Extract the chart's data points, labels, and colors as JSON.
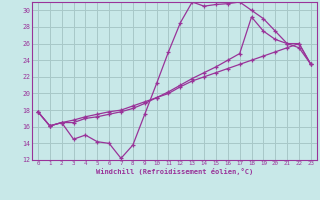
{
  "xlabel": "Windchill (Refroidissement éolien,°C)",
  "bg_color": "#c8e8e8",
  "grid_color": "#a8c8c8",
  "line_color": "#993399",
  "xlim": [
    -0.5,
    23.5
  ],
  "ylim": [
    12,
    31
  ],
  "xticks": [
    0,
    1,
    2,
    3,
    4,
    5,
    6,
    7,
    8,
    9,
    10,
    11,
    12,
    13,
    14,
    15,
    16,
    17,
    18,
    19,
    20,
    21,
    22,
    23
  ],
  "yticks": [
    12,
    14,
    16,
    18,
    20,
    22,
    24,
    26,
    28,
    30
  ],
  "series1_x": [
    0,
    1,
    2,
    3,
    4,
    5,
    6,
    7,
    8,
    9,
    10,
    11,
    12,
    13,
    14,
    15,
    16,
    17,
    18,
    19,
    20,
    21,
    22,
    23
  ],
  "series1_y": [
    17.8,
    16.1,
    16.5,
    14.5,
    15.0,
    14.2,
    14.0,
    12.2,
    13.8,
    17.5,
    21.2,
    25.0,
    28.5,
    31.0,
    30.5,
    30.7,
    30.8,
    31.0,
    30.0,
    29.0,
    27.5,
    26.0,
    25.5,
    23.5
  ],
  "series2_x": [
    0,
    1,
    2,
    3,
    4,
    5,
    6,
    7,
    8,
    9,
    10,
    11,
    12,
    13,
    14,
    15,
    16,
    17,
    18,
    19,
    20,
    21,
    22,
    23
  ],
  "series2_y": [
    17.8,
    16.1,
    16.5,
    16.5,
    17.0,
    17.2,
    17.5,
    17.8,
    18.2,
    18.8,
    19.5,
    20.2,
    21.0,
    21.8,
    22.5,
    23.2,
    24.0,
    24.8,
    29.2,
    27.5,
    26.5,
    26.0,
    26.0,
    23.5
  ],
  "series3_x": [
    0,
    1,
    2,
    3,
    4,
    5,
    6,
    7,
    8,
    9,
    10,
    11,
    12,
    13,
    14,
    15,
    16,
    17,
    18,
    19,
    20,
    21,
    22,
    23
  ],
  "series3_y": [
    17.8,
    16.1,
    16.5,
    16.8,
    17.2,
    17.5,
    17.8,
    18.0,
    18.5,
    19.0,
    19.5,
    20.0,
    20.8,
    21.5,
    22.0,
    22.5,
    23.0,
    23.5,
    24.0,
    24.5,
    25.0,
    25.5,
    26.0,
    23.5
  ]
}
